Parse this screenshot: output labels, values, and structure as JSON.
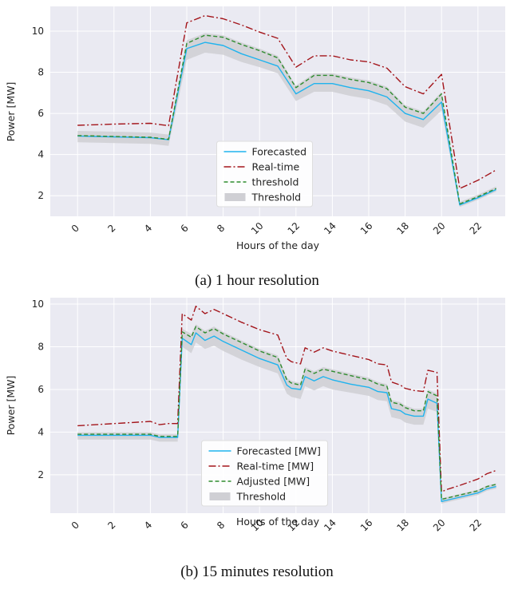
{
  "colors": {
    "forecast": "#1fb3ee",
    "realtime": "#a3141a",
    "adjusted": "#2e8b2e",
    "band": "#cfcfd4",
    "panel_bg": "#eaeaf2",
    "grid": "#ffffff"
  },
  "chart_data": [
    {
      "type": "line",
      "caption": "(a) 1 hour resolution",
      "xlabel": "Hours of the day",
      "ylabel": "Power [MW]",
      "xlim": [
        -1.5,
        23.5
      ],
      "ylim": [
        1.0,
        11.2
      ],
      "xticks": [
        0,
        2,
        4,
        6,
        8,
        10,
        12,
        14,
        16,
        18,
        20,
        22
      ],
      "yticks": [
        2,
        4,
        6,
        8,
        10
      ],
      "grid": true,
      "legend_position": "lower-center",
      "x": [
        0,
        1,
        2,
        3,
        4,
        5,
        6,
        7,
        8,
        9,
        10,
        11,
        12,
        13,
        14,
        15,
        16,
        17,
        18,
        19,
        20,
        21,
        22,
        23
      ],
      "series": [
        {
          "name": "Forecasted",
          "key": "forecast",
          "style": "solid",
          "values": [
            4.9,
            4.88,
            4.86,
            4.84,
            4.82,
            4.72,
            9.15,
            9.45,
            9.3,
            8.9,
            8.6,
            8.3,
            6.95,
            7.45,
            7.45,
            7.25,
            7.1,
            6.8,
            6.0,
            5.7,
            6.55,
            1.55,
            1.9,
            2.3
          ]
        },
        {
          "name": "Real-time",
          "key": "realtime",
          "style": "dashdot",
          "values": [
            5.42,
            5.45,
            5.48,
            5.5,
            5.52,
            5.4,
            10.4,
            10.75,
            10.6,
            10.3,
            9.95,
            9.65,
            8.25,
            8.8,
            8.8,
            8.6,
            8.5,
            8.2,
            7.3,
            6.95,
            7.9,
            2.35,
            2.75,
            3.25
          ]
        },
        {
          "name": "threshold",
          "key": "adjusted",
          "style": "dashed",
          "values": [
            4.92,
            4.9,
            4.88,
            4.86,
            4.84,
            4.74,
            9.4,
            9.8,
            9.7,
            9.35,
            9.05,
            8.7,
            7.25,
            7.85,
            7.85,
            7.65,
            7.5,
            7.2,
            6.3,
            6.0,
            6.95,
            1.6,
            1.95,
            2.35
          ]
        }
      ],
      "threshold_band": {
        "name": "Threshold",
        "lower": [
          4.6,
          4.58,
          4.56,
          4.54,
          4.52,
          4.42,
          8.6,
          8.95,
          8.85,
          8.5,
          8.25,
          7.95,
          6.6,
          7.05,
          7.05,
          6.85,
          6.7,
          6.4,
          5.6,
          5.3,
          6.15,
          1.45,
          1.8,
          2.2
        ],
        "upper": [
          5.15,
          5.13,
          5.11,
          5.09,
          5.07,
          4.97,
          9.55,
          9.9,
          9.8,
          9.45,
          9.15,
          8.8,
          7.35,
          7.95,
          7.95,
          7.75,
          7.6,
          7.3,
          6.4,
          6.1,
          7.05,
          1.7,
          2.05,
          2.45
        ]
      }
    },
    {
      "type": "line",
      "caption": "(b) 15 minutes resolution",
      "xlabel": "Hours of the day",
      "ylabel": "Power [MW]",
      "xlim": [
        -1.5,
        23.5
      ],
      "ylim": [
        0.2,
        10.3
      ],
      "xticks": [
        0,
        2,
        4,
        6,
        8,
        10,
        12,
        14,
        16,
        18,
        20,
        22
      ],
      "yticks": [
        2,
        4,
        6,
        8,
        10
      ],
      "grid": true,
      "legend_position": "lower-center",
      "x": [
        0,
        1,
        2,
        3,
        4,
        4.5,
        5,
        5.5,
        5.75,
        6.25,
        6.5,
        7,
        7.5,
        8,
        9,
        10,
        11,
        11.5,
        11.75,
        12.25,
        12.5,
        13,
        13.5,
        14,
        15,
        16,
        16.5,
        17,
        17.25,
        17.75,
        18,
        18.5,
        19,
        19.25,
        19.75,
        20,
        20.25,
        21,
        22,
        22.5,
        23
      ],
      "series": [
        {
          "name": "Forecasted [MW]",
          "key": "forecast",
          "style": "solid",
          "values": [
            3.85,
            3.85,
            3.85,
            3.85,
            3.85,
            3.75,
            3.75,
            3.75,
            8.4,
            8.1,
            8.65,
            8.3,
            8.5,
            8.25,
            7.85,
            7.45,
            7.15,
            6.2,
            6.05,
            6.0,
            6.6,
            6.4,
            6.6,
            6.45,
            6.25,
            6.1,
            5.9,
            5.85,
            5.1,
            5.0,
            4.85,
            4.75,
            4.75,
            5.55,
            5.35,
            0.75,
            0.8,
            0.95,
            1.15,
            1.35,
            1.45
          ]
        },
        {
          "name": "Real-time [MW]",
          "key": "realtime",
          "style": "dashdot",
          "values": [
            4.3,
            4.35,
            4.4,
            4.45,
            4.5,
            4.35,
            4.4,
            4.4,
            9.55,
            9.25,
            9.9,
            9.55,
            9.75,
            9.55,
            9.15,
            8.8,
            8.55,
            7.45,
            7.3,
            7.2,
            7.95,
            7.75,
            7.95,
            7.8,
            7.6,
            7.4,
            7.2,
            7.15,
            6.35,
            6.2,
            6.05,
            5.95,
            5.9,
            6.9,
            6.8,
            1.2,
            1.3,
            1.5,
            1.8,
            2.05,
            2.2
          ]
        },
        {
          "name": "Adjusted [MW]",
          "key": "adjusted",
          "style": "dashed",
          "values": [
            3.9,
            3.9,
            3.9,
            3.9,
            3.9,
            3.8,
            3.8,
            3.8,
            8.7,
            8.45,
            8.95,
            8.65,
            8.85,
            8.6,
            8.2,
            7.8,
            7.5,
            6.45,
            6.3,
            6.2,
            6.95,
            6.75,
            6.95,
            6.85,
            6.65,
            6.45,
            6.25,
            6.15,
            5.4,
            5.3,
            5.15,
            5.0,
            5.0,
            5.9,
            5.7,
            0.85,
            0.9,
            1.05,
            1.25,
            1.45,
            1.55
          ]
        }
      ],
      "threshold_band": {
        "name": "Threshold",
        "lower": [
          3.65,
          3.65,
          3.65,
          3.65,
          3.65,
          3.55,
          3.55,
          3.55,
          8.0,
          7.7,
          8.2,
          7.9,
          8.05,
          7.8,
          7.4,
          7.05,
          6.75,
          5.8,
          5.65,
          5.55,
          6.15,
          5.95,
          6.15,
          6.0,
          5.85,
          5.7,
          5.5,
          5.45,
          4.7,
          4.6,
          4.45,
          4.35,
          4.35,
          5.1,
          4.95,
          0.65,
          0.7,
          0.85,
          1.05,
          1.25,
          1.35
        ],
        "upper": [
          4.0,
          4.0,
          4.0,
          4.0,
          4.0,
          3.9,
          3.9,
          3.9,
          8.85,
          8.6,
          9.05,
          8.75,
          8.95,
          8.7,
          8.3,
          7.9,
          7.6,
          6.55,
          6.4,
          6.3,
          7.05,
          6.85,
          7.05,
          6.95,
          6.75,
          6.55,
          6.35,
          6.25,
          5.5,
          5.4,
          5.25,
          5.1,
          5.1,
          6.0,
          5.8,
          0.9,
          0.95,
          1.1,
          1.3,
          1.5,
          1.6
        ]
      }
    }
  ]
}
